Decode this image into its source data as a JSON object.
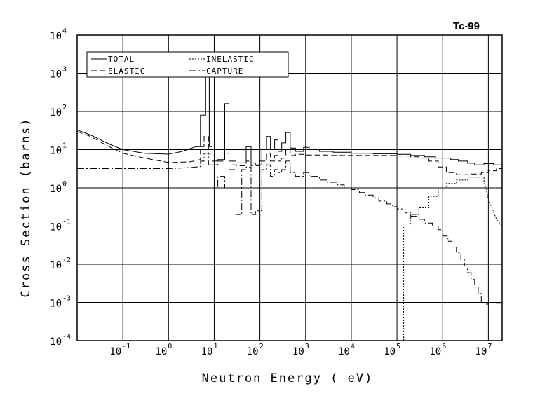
{
  "chart_data": {
    "type": "line",
    "title": "Tc-99",
    "xlabel": "Neutron Energy ( eV)",
    "ylabel": "Cross Section (barns)",
    "xscale": "log",
    "yscale": "log",
    "xlim": [
      0.01,
      20000000
    ],
    "ylim": [
      0.0001,
      10000
    ],
    "grid": true,
    "legend_position": "top-left",
    "x_ticks": [
      {
        "base": "10",
        "exp": "-1",
        "value": 0.1
      },
      {
        "base": "10",
        "exp": "0",
        "value": 1
      },
      {
        "base": "10",
        "exp": "1",
        "value": 10
      },
      {
        "base": "10",
        "exp": "2",
        "value": 100
      },
      {
        "base": "10",
        "exp": "3",
        "value": 1000
      },
      {
        "base": "10",
        "exp": "4",
        "value": 10000
      },
      {
        "base": "10",
        "exp": "5",
        "value": 100000
      },
      {
        "base": "10",
        "exp": "6",
        "value": 1000000
      },
      {
        "base": "10",
        "exp": "7",
        "value": 10000000
      }
    ],
    "y_ticks": [
      {
        "base": "10",
        "exp": "4",
        "value": 10000
      },
      {
        "base": "10",
        "exp": "3",
        "value": 1000
      },
      {
        "base": "10",
        "exp": "2",
        "value": 100
      },
      {
        "base": "10",
        "exp": "1",
        "value": 10
      },
      {
        "base": "10",
        "exp": "0",
        "value": 1
      },
      {
        "base": "10",
        "exp": "-1",
        "value": 0.1
      },
      {
        "base": "10",
        "exp": "-2",
        "value": 0.01
      },
      {
        "base": "10",
        "exp": "-3",
        "value": 0.001
      },
      {
        "base": "10",
        "exp": "-4",
        "value": 0.0001
      }
    ],
    "series": [
      {
        "name": "TOTAL",
        "dash": "solid",
        "points": [
          [
            0.01,
            33
          ],
          [
            0.02,
            24
          ],
          [
            0.05,
            14
          ],
          [
            0.1,
            10
          ],
          [
            0.3,
            8
          ],
          [
            1,
            7.6
          ],
          [
            2,
            9
          ],
          [
            4,
            12
          ],
          [
            5,
            12
          ],
          [
            5,
            80
          ],
          [
            6.5,
            80
          ],
          [
            6.5,
            900
          ],
          [
            7.8,
            900
          ],
          [
            7.8,
            12
          ],
          [
            9,
            12
          ],
          [
            9,
            5
          ],
          [
            12,
            5
          ],
          [
            12,
            5.5
          ],
          [
            17,
            5.5
          ],
          [
            17,
            160
          ],
          [
            21,
            160
          ],
          [
            21,
            5
          ],
          [
            30,
            5
          ],
          [
            30,
            4.5
          ],
          [
            50,
            4.5
          ],
          [
            50,
            12
          ],
          [
            64,
            12
          ],
          [
            64,
            4.5
          ],
          [
            80,
            4.5
          ],
          [
            80,
            4
          ],
          [
            110,
            4
          ],
          [
            110,
            10
          ],
          [
            140,
            10
          ],
          [
            140,
            22
          ],
          [
            170,
            22
          ],
          [
            170,
            10
          ],
          [
            210,
            10
          ],
          [
            210,
            18
          ],
          [
            250,
            18
          ],
          [
            250,
            9
          ],
          [
            300,
            9
          ],
          [
            300,
            15
          ],
          [
            370,
            15
          ],
          [
            370,
            28
          ],
          [
            460,
            28
          ],
          [
            460,
            11
          ],
          [
            600,
            11
          ],
          [
            600,
            9
          ],
          [
            900,
            9
          ],
          [
            900,
            11.5
          ],
          [
            1200,
            11.5
          ],
          [
            1200,
            10
          ],
          [
            2000,
            10
          ],
          [
            2000,
            9
          ],
          [
            4000,
            9
          ],
          [
            4000,
            8.5
          ],
          [
            10000,
            8.5
          ],
          [
            10000,
            8
          ],
          [
            30000,
            8
          ],
          [
            30000,
            7.8
          ],
          [
            100000,
            7.8
          ],
          [
            100000,
            7.5
          ],
          [
            200000,
            7.5
          ],
          [
            200000,
            7
          ],
          [
            400000,
            7
          ],
          [
            400000,
            6.5
          ],
          [
            700000,
            6.5
          ],
          [
            700000,
            6
          ],
          [
            1500000,
            6
          ],
          [
            1500000,
            5.5
          ],
          [
            2200000,
            5.5
          ],
          [
            2200000,
            5
          ],
          [
            3500000,
            5
          ],
          [
            3500000,
            4.4
          ],
          [
            5000000,
            4.4
          ],
          [
            5000000,
            4
          ],
          [
            8000000,
            4
          ],
          [
            8000000,
            4.3
          ],
          [
            13000000,
            4.3
          ],
          [
            13000000,
            4
          ],
          [
            20000000,
            4
          ]
        ]
      },
      {
        "name": "INELASTIC",
        "dash": "dotted",
        "points": [
          [
            140000,
            0.0001
          ],
          [
            140000,
            0.1
          ],
          [
            200000,
            0.1
          ],
          [
            200000,
            0.2
          ],
          [
            300000,
            0.2
          ],
          [
            300000,
            0.3
          ],
          [
            500000,
            0.3
          ],
          [
            500000,
            0.6
          ],
          [
            800000,
            0.6
          ],
          [
            800000,
            1
          ],
          [
            1200000,
            1
          ],
          [
            1200000,
            1.3
          ],
          [
            2000000,
            1.3
          ],
          [
            2000000,
            1.6
          ],
          [
            3500000,
            1.6
          ],
          [
            3500000,
            1.9
          ],
          [
            6000000,
            1.9
          ],
          [
            6000000,
            1.9
          ],
          [
            8000000,
            1.9
          ],
          [
            8000000,
            1.5
          ],
          [
            9000000,
            0.9
          ],
          [
            10000000,
            0.5
          ],
          [
            12000000,
            0.3
          ],
          [
            15000000,
            0.15
          ],
          [
            20000000,
            0.1
          ]
        ]
      },
      {
        "name": "ELASTIC",
        "dash": "dashed",
        "points": [
          [
            0.01,
            30
          ],
          [
            0.02,
            22
          ],
          [
            0.05,
            12
          ],
          [
            0.1,
            8
          ],
          [
            0.3,
            6
          ],
          [
            1,
            4.6
          ],
          [
            3,
            4.8
          ],
          [
            5,
            5.5
          ],
          [
            5,
            12
          ],
          [
            6,
            12
          ],
          [
            6,
            22
          ],
          [
            7.5,
            22
          ],
          [
            7.5,
            8
          ],
          [
            9,
            8
          ],
          [
            9,
            4
          ],
          [
            12,
            4
          ],
          [
            12,
            5
          ],
          [
            17,
            5
          ],
          [
            17,
            8
          ],
          [
            21,
            8
          ],
          [
            21,
            4
          ],
          [
            30,
            4
          ],
          [
            30,
            3.8
          ],
          [
            50,
            3.8
          ],
          [
            50,
            5
          ],
          [
            64,
            5
          ],
          [
            64,
            3.8
          ],
          [
            100,
            3.8
          ],
          [
            100,
            5
          ],
          [
            140,
            5
          ],
          [
            140,
            8
          ],
          [
            170,
            8
          ],
          [
            170,
            5
          ],
          [
            210,
            5
          ],
          [
            210,
            7
          ],
          [
            250,
            7
          ],
          [
            250,
            5
          ],
          [
            300,
            5
          ],
          [
            300,
            6
          ],
          [
            370,
            6
          ],
          [
            370,
            10
          ],
          [
            460,
            10
          ],
          [
            460,
            7
          ],
          [
            600,
            7
          ],
          [
            600,
            7.5
          ],
          [
            1000,
            7.5
          ],
          [
            1000,
            7.2
          ],
          [
            3000,
            7.2
          ],
          [
            3000,
            7
          ],
          [
            10000,
            7
          ],
          [
            10000,
            7
          ],
          [
            100000,
            7
          ],
          [
            100000,
            6.8
          ],
          [
            200000,
            6.8
          ],
          [
            200000,
            6.5
          ],
          [
            300000,
            6.5
          ],
          [
            300000,
            6
          ],
          [
            500000,
            6
          ],
          [
            500000,
            5
          ],
          [
            800000,
            5
          ],
          [
            800000,
            3.5
          ],
          [
            1200000,
            3.5
          ],
          [
            1200000,
            2.5
          ],
          [
            2000000,
            2.5
          ],
          [
            2000000,
            2.2
          ],
          [
            4000000,
            2.2
          ],
          [
            4000000,
            2.3
          ],
          [
            7000000,
            2.3
          ],
          [
            7000000,
            2.5
          ],
          [
            10000000,
            2.5
          ],
          [
            10000000,
            2.8
          ],
          [
            15000000,
            2.8
          ],
          [
            15000000,
            3.2
          ],
          [
            20000000,
            3.2
          ]
        ]
      },
      {
        "name": "CAPTURE",
        "dash": "dashdot",
        "points": [
          [
            0.01,
            3.2
          ],
          [
            0.1,
            3.2
          ],
          [
            1,
            3.2
          ],
          [
            3,
            3.4
          ],
          [
            5,
            3.6
          ],
          [
            5,
            5
          ],
          [
            6,
            5
          ],
          [
            6,
            8
          ],
          [
            7.5,
            8
          ],
          [
            7.5,
            4
          ],
          [
            9,
            4
          ],
          [
            9,
            1
          ],
          [
            12,
            1
          ],
          [
            12,
            2
          ],
          [
            17,
            2
          ],
          [
            17,
            1
          ],
          [
            21,
            1
          ],
          [
            21,
            3
          ],
          [
            30,
            3
          ],
          [
            30,
            0.2
          ],
          [
            40,
            0.2
          ],
          [
            40,
            3
          ],
          [
            50,
            3
          ],
          [
            50,
            3.5
          ],
          [
            64,
            3.5
          ],
          [
            64,
            0.2
          ],
          [
            80,
            0.2
          ],
          [
            80,
            0.25
          ],
          [
            110,
            0.25
          ],
          [
            110,
            3
          ],
          [
            140,
            3
          ],
          [
            140,
            4
          ],
          [
            170,
            4
          ],
          [
            170,
            2
          ],
          [
            210,
            2
          ],
          [
            210,
            3
          ],
          [
            250,
            3
          ],
          [
            250,
            2.5
          ],
          [
            300,
            2.5
          ],
          [
            300,
            3
          ],
          [
            370,
            3
          ],
          [
            370,
            5
          ],
          [
            460,
            5
          ],
          [
            460,
            2.5
          ],
          [
            600,
            2.5
          ],
          [
            600,
            2
          ],
          [
            900,
            2
          ],
          [
            900,
            2.5
          ],
          [
            1200,
            2.5
          ],
          [
            1200,
            2
          ],
          [
            2000,
            2
          ],
          [
            2000,
            1.6
          ],
          [
            3000,
            1.6
          ],
          [
            3000,
            1.4
          ],
          [
            5000,
            1.4
          ],
          [
            5000,
            1.2
          ],
          [
            7000,
            1.2
          ],
          [
            7000,
            1
          ],
          [
            10000,
            1
          ],
          [
            10000,
            0.9
          ],
          [
            15000,
            0.9
          ],
          [
            15000,
            0.75
          ],
          [
            20000,
            0.75
          ],
          [
            20000,
            0.65
          ],
          [
            30000,
            0.65
          ],
          [
            30000,
            0.55
          ],
          [
            40000,
            0.55
          ],
          [
            40000,
            0.45
          ],
          [
            60000,
            0.45
          ],
          [
            60000,
            0.38
          ],
          [
            80000,
            0.38
          ],
          [
            80000,
            0.32
          ],
          [
            100000,
            0.32
          ],
          [
            100000,
            0.28
          ],
          [
            150000,
            0.28
          ],
          [
            150000,
            0.22
          ],
          [
            200000,
            0.22
          ],
          [
            200000,
            0.18
          ],
          [
            300000,
            0.18
          ],
          [
            300000,
            0.15
          ],
          [
            400000,
            0.15
          ],
          [
            400000,
            0.12
          ],
          [
            600000,
            0.12
          ],
          [
            600000,
            0.1
          ],
          [
            800000,
            0.1
          ],
          [
            800000,
            0.08
          ],
          [
            1000000,
            0.08
          ],
          [
            1000000,
            0.055
          ],
          [
            1300000,
            0.055
          ],
          [
            1300000,
            0.04
          ],
          [
            1600000,
            0.04
          ],
          [
            1600000,
            0.028
          ],
          [
            2000000,
            0.028
          ],
          [
            2000000,
            0.02
          ],
          [
            2500000,
            0.02
          ],
          [
            2500000,
            0.013
          ],
          [
            3000000,
            0.013
          ],
          [
            3000000,
            0.009
          ],
          [
            3500000,
            0.009
          ],
          [
            3500000,
            0.006
          ],
          [
            4200000,
            0.006
          ],
          [
            4200000,
            0.004
          ],
          [
            5000000,
            0.004
          ],
          [
            5000000,
            0.0025
          ],
          [
            6000000,
            0.0025
          ],
          [
            6000000,
            0.0017
          ],
          [
            7000000,
            0.0017
          ],
          [
            7000000,
            0.001
          ],
          [
            9000000,
            0.001
          ],
          [
            9000000,
            0.0009
          ],
          [
            10000000,
            0.0009
          ],
          [
            10000000,
            0.001
          ],
          [
            15000000,
            0.001
          ],
          [
            15000000,
            0.00095
          ],
          [
            20000000,
            0.00095
          ]
        ]
      }
    ]
  }
}
